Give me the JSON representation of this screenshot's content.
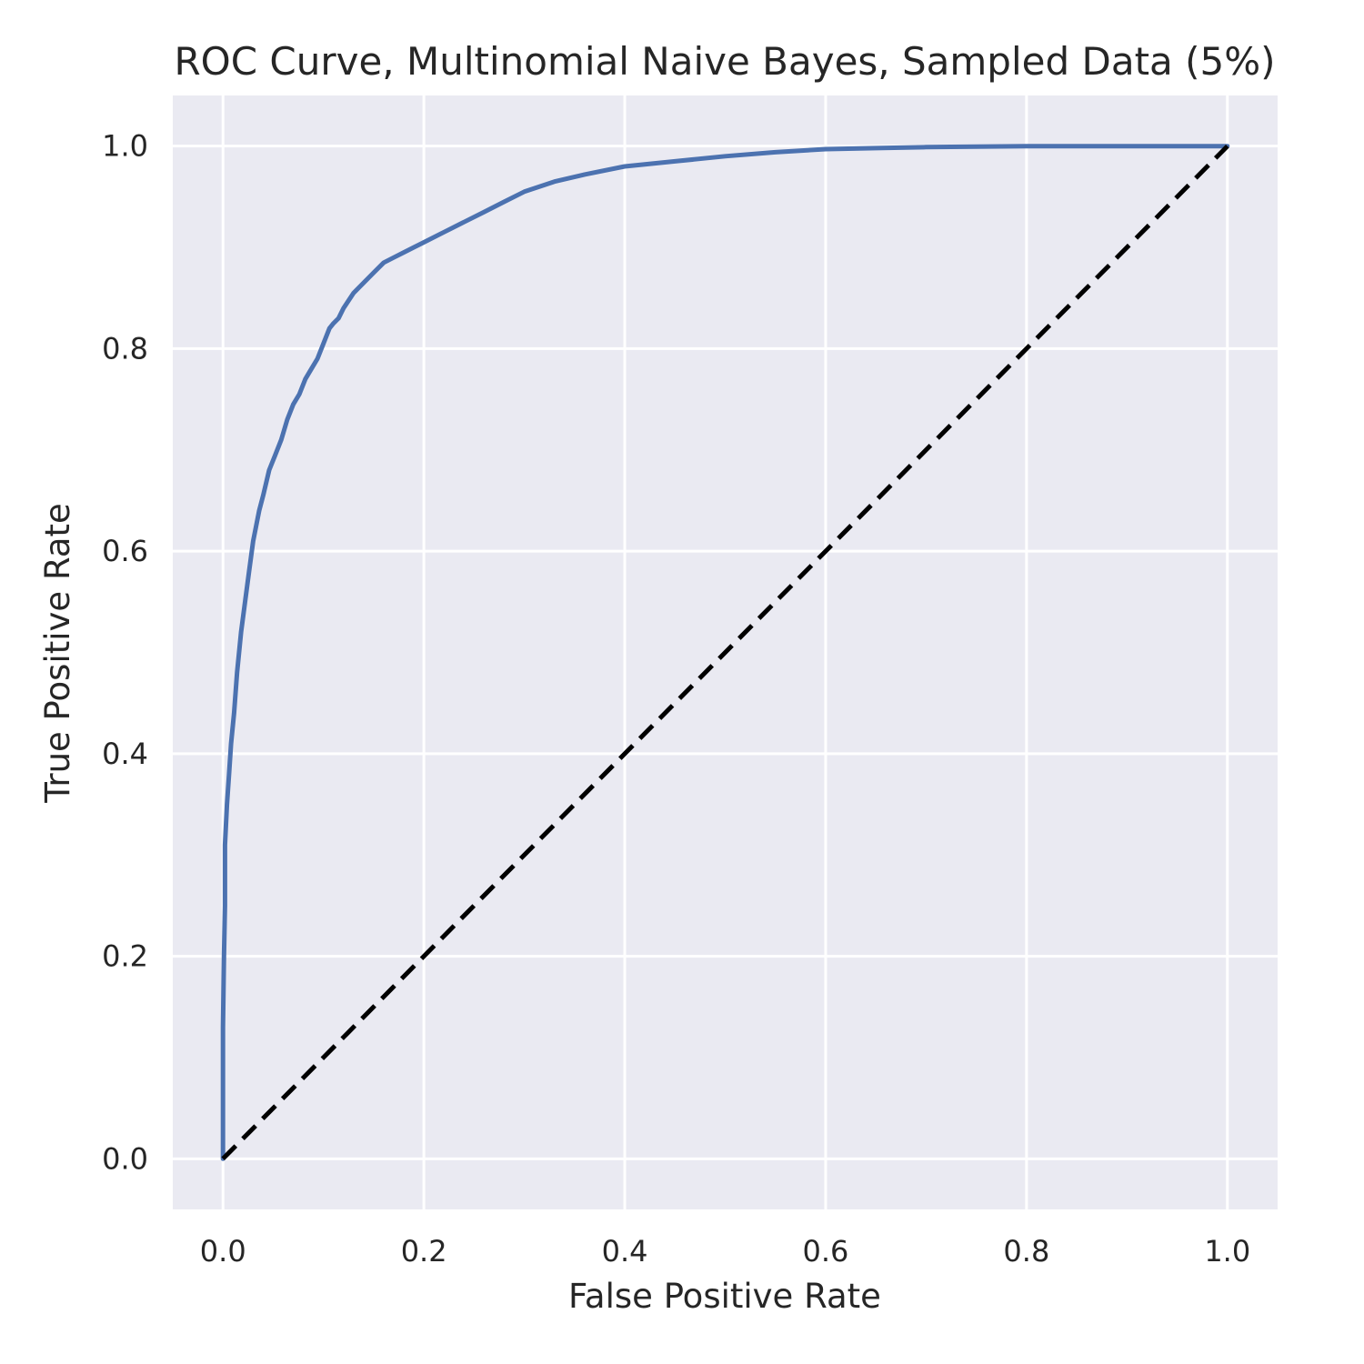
{
  "chart_data": {
    "type": "line",
    "title": "ROC Curve, Multinomial Naive Bayes, Sampled Data (5%)",
    "xlabel": "False Positive Rate",
    "ylabel": "True Positive Rate",
    "xlim": [
      -0.05,
      1.05
    ],
    "ylim": [
      -0.05,
      1.05
    ],
    "grid": true,
    "xticks": [
      "0.0",
      "0.2",
      "0.4",
      "0.6",
      "0.8",
      "1.0"
    ],
    "yticks": [
      "0.0",
      "0.2",
      "0.4",
      "0.6",
      "0.8",
      "1.0"
    ],
    "colors": {
      "roc": "#4c72b0",
      "reference": "#000000",
      "background": "#eaeaf2",
      "grid": "#ffffff"
    },
    "series": [
      {
        "style": "solid",
        "x": [
          0.0,
          0.0,
          0.001,
          0.002,
          0.002,
          0.004,
          0.006,
          0.008,
          0.011,
          0.014,
          0.018,
          0.022,
          0.026,
          0.03,
          0.033,
          0.036,
          0.04,
          0.046,
          0.052,
          0.058,
          0.064,
          0.07,
          0.076,
          0.082,
          0.088,
          0.094,
          0.1,
          0.106,
          0.11,
          0.115,
          0.12,
          0.13,
          0.14,
          0.15,
          0.16,
          0.17,
          0.18,
          0.19,
          0.2,
          0.22,
          0.24,
          0.26,
          0.28,
          0.3,
          0.33,
          0.36,
          0.4,
          0.45,
          0.5,
          0.55,
          0.6,
          0.65,
          0.7,
          0.8,
          0.9,
          1.0
        ],
        "y": [
          0.0,
          0.13,
          0.2,
          0.25,
          0.31,
          0.35,
          0.38,
          0.41,
          0.44,
          0.48,
          0.52,
          0.55,
          0.58,
          0.61,
          0.625,
          0.64,
          0.655,
          0.68,
          0.695,
          0.71,
          0.73,
          0.745,
          0.755,
          0.77,
          0.78,
          0.79,
          0.805,
          0.82,
          0.825,
          0.83,
          0.84,
          0.855,
          0.865,
          0.875,
          0.885,
          0.89,
          0.895,
          0.9,
          0.905,
          0.915,
          0.925,
          0.935,
          0.945,
          0.955,
          0.965,
          0.972,
          0.98,
          0.985,
          0.99,
          0.994,
          0.997,
          0.998,
          0.999,
          1.0,
          1.0,
          1.0
        ]
      },
      {
        "style": "dashed",
        "x": [
          0.0,
          1.0
        ],
        "y": [
          0.0,
          1.0
        ]
      }
    ]
  }
}
